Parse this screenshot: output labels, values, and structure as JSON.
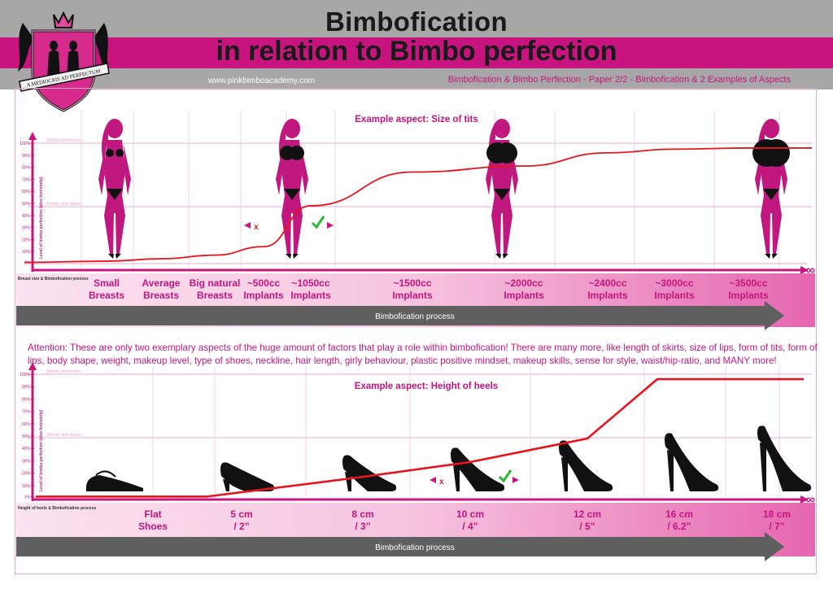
{
  "header": {
    "title_line1": "Bimbofication",
    "title_line2": "in relation to Bimbo perfection",
    "url": "www.pinkbimboacademy.com",
    "paper": "Bimbofication & Bimbo Perfection - Paper 2/2 - Bimbofication & 2 Examples of Aspects",
    "logo_text": "A MEDIOCRIS AD PERFECTUM"
  },
  "colors": {
    "brand_pink": "#c8147e",
    "curve_red": "#e8141e",
    "silhouette_pink": "#c0187e",
    "gray": "#a8a7a7",
    "check_green": "#2db82d"
  },
  "attention": "Attention: These are only two exemplary aspects of the huge amount of factors that play a role within bimbofication! There are many more, like length of skirts, size of lips, form of tits, form of lips, body shape, weight, makeup level, type of shoes, neckline, hair length, girly behaviour, plastic positive mindset, makeup skills, sense for style, waist/hip-ratio, and MANY more!",
  "chart_data": [
    {
      "type": "line",
      "title": "Example aspect: Size of tits",
      "ylabel": "Level of bimbo perfection (also femininity)",
      "xlabel": "Breast size & Bimbofication process",
      "y_ticks": [
        "1%",
        "10%",
        "20%",
        "30%",
        "40%",
        "50%",
        "60%",
        "70%",
        "80%",
        "90%",
        "100%"
      ],
      "ylim": [
        0,
        100
      ],
      "reference_lines": [
        {
          "label": "Bimbo perfection",
          "y": 100
        },
        {
          "label": "Bimbo doll status",
          "y": 50
        }
      ],
      "categories": [
        "Small Breasts",
        "Average Breasts",
        "Big natural Breasts",
        "~500cc Implants",
        "~1050cc Implants",
        "~1500cc Implants",
        "~2000cc Implants",
        "~2400cc Implants",
        "~3000cc Implants",
        "~3500cc Implants"
      ],
      "category_lines": [
        [
          "Small",
          "Breasts"
        ],
        [
          "Average",
          "Breasts"
        ],
        [
          "Big natural",
          "Breasts"
        ],
        [
          "~500cc",
          "Implants"
        ],
        [
          "~1050cc",
          "Implants"
        ],
        [
          "~1500cc",
          "Implants"
        ],
        [
          "~2000cc",
          "Implants"
        ],
        [
          "~2400cc",
          "Implants"
        ],
        [
          "~3000cc",
          "Implants"
        ],
        [
          "~3500cc",
          "Implants"
        ]
      ],
      "series": [
        {
          "values": [
            2,
            4,
            7,
            14,
            48,
            76,
            81,
            92,
            95,
            96
          ]
        }
      ],
      "infinity_symbol": "∞",
      "process_label": "Bimbofication process"
    },
    {
      "type": "line",
      "title": "Example aspect: Height of heels",
      "ylabel": "Level of bimbo perfection (also femininity)",
      "xlabel": "Height of heels & Bimbofication process",
      "y_ticks": [
        "1%",
        "10%",
        "20%",
        "30%",
        "40%",
        "50%",
        "60%",
        "70%",
        "80%",
        "90%",
        "100%"
      ],
      "ylim": [
        0,
        100
      ],
      "reference_lines": [
        {
          "label": "Bimbo perfection",
          "y": 100
        },
        {
          "label": "Bimbo doll status",
          "y": 50
        }
      ],
      "categories": [
        "Flat Shoes",
        "5 cm / 2”",
        "8 cm / 3”",
        "10 cm / 4”",
        "12 cm / 5”",
        "16 cm / 6.2”",
        "18 cm / 7”"
      ],
      "category_lines": [
        [
          "Flat",
          "Shoes"
        ],
        [
          "5 cm",
          "/ 2”"
        ],
        [
          "8 cm",
          "/ 3”"
        ],
        [
          "10 cm",
          "/ 4”"
        ],
        [
          "12 cm",
          "/ 5”"
        ],
        [
          "16 cm",
          "/ 6.2”"
        ],
        [
          "18 cm",
          "/ 7”"
        ]
      ],
      "series": [
        {
          "values": [
            1,
            3,
            17,
            29,
            48,
            96,
            96
          ]
        }
      ],
      "infinity_symbol": "∞",
      "process_label": "Bimbofication process"
    }
  ]
}
